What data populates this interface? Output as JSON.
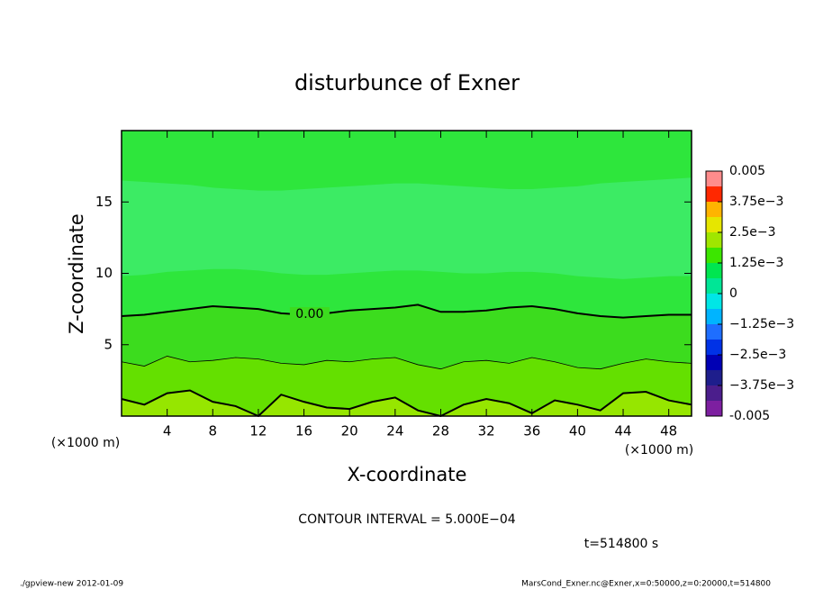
{
  "chart_data": {
    "type": "contour",
    "title": "disturbunce of Exner",
    "x_label": "X-coordinate",
    "y_label": "Z-coordinate",
    "x_unit": "(×1000 m)",
    "y_unit": "(×1000 m)",
    "xlim": [
      0,
      50
    ],
    "ylim": [
      0,
      20
    ],
    "xticks": [
      4,
      8,
      12,
      16,
      20,
      24,
      28,
      32,
      36,
      40,
      44,
      48
    ],
    "yticks": [
      5,
      10,
      15
    ],
    "x": [
      0,
      2,
      4,
      6,
      8,
      10,
      12,
      14,
      16,
      18,
      20,
      22,
      24,
      26,
      28,
      30,
      32,
      34,
      36,
      38,
      40,
      42,
      44,
      46,
      48,
      50
    ],
    "background": "#2ee63c",
    "layers": [
      {
        "color": "#3ceb64",
        "z": [
          16.5,
          16.4,
          16.3,
          16.2,
          16.0,
          15.9,
          15.8,
          15.8,
          15.9,
          16.0,
          16.1,
          16.2,
          16.3,
          16.3,
          16.2,
          16.1,
          16.0,
          15.9,
          15.9,
          16.0,
          16.1,
          16.3,
          16.4,
          16.5,
          16.6,
          16.7
        ]
      },
      {
        "color": "#2ee63c",
        "z": [
          9.8,
          9.9,
          10.1,
          10.2,
          10.3,
          10.3,
          10.2,
          10.0,
          9.9,
          9.9,
          10.0,
          10.1,
          10.2,
          10.2,
          10.1,
          10.0,
          10.0,
          10.1,
          10.1,
          10.0,
          9.8,
          9.7,
          9.6,
          9.7,
          9.8,
          9.8
        ]
      },
      {
        "color": "#3cdc1e",
        "line_width": 2,
        "z": [
          7.0,
          7.1,
          7.3,
          7.5,
          7.7,
          7.6,
          7.5,
          7.2,
          7.1,
          7.2,
          7.4,
          7.5,
          7.6,
          7.8,
          7.3,
          7.3,
          7.4,
          7.6,
          7.7,
          7.5,
          7.2,
          7.0,
          6.9,
          7.0,
          7.1,
          7.1
        ]
      },
      {
        "color": "#64e000",
        "line_width": 0.8,
        "z": [
          3.8,
          3.5,
          4.2,
          3.8,
          3.9,
          4.1,
          4.0,
          3.7,
          3.6,
          3.9,
          3.8,
          4.0,
          4.1,
          3.6,
          3.3,
          3.8,
          3.9,
          3.7,
          4.1,
          3.8,
          3.4,
          3.3,
          3.7,
          4.0,
          3.8,
          3.7
        ]
      },
      {
        "color": "#96e600",
        "line_width": 2,
        "z": [
          1.2,
          0.8,
          1.6,
          1.8,
          1.0,
          0.7,
          0.0,
          1.5,
          1.0,
          0.6,
          0.5,
          1.0,
          1.3,
          0.4,
          0.0,
          0.8,
          1.2,
          0.9,
          0.2,
          1.1,
          0.8,
          0.4,
          1.6,
          1.7,
          1.1,
          0.8
        ]
      }
    ],
    "contour_label": "0.00",
    "contour_label_x": 16.5,
    "colorbar": {
      "lim": [
        -0.005,
        0.005
      ],
      "levels": [
        -0.005,
        -0.004375,
        -0.00375,
        -0.003125,
        -0.0025,
        -0.001875,
        -0.00125,
        -0.000625,
        0,
        0.000625,
        0.00125,
        0.001875,
        0.0025,
        0.003125,
        0.00375,
        0.004375,
        0.005
      ],
      "colors": [
        "#7d1fa0",
        "#4b1e8c",
        "#1e1e8c",
        "#0000b4",
        "#0032e6",
        "#1e6eff",
        "#00b4ff",
        "#00e6e6",
        "#00e696",
        "#00e650",
        "#3ce600",
        "#a0e600",
        "#e6e600",
        "#ffb400",
        "#ff2800",
        "#ff8c8c"
      ],
      "ticks": [
        -0.005,
        {
          "value": -0.00375,
          "label": "−3.75e−3"
        },
        {
          "value": -0.0025,
          "label": "−2.5e−3"
        },
        {
          "value": -0.00125,
          "label": "−1.25e−3"
        },
        0,
        {
          "value": 0.00125,
          "label": "1.25e−3"
        },
        {
          "value": 0.0025,
          "label": "2.5e−3"
        },
        {
          "value": 0.00375,
          "label": "3.75e−3"
        },
        0.005
      ]
    },
    "footer_interval": "CONTOUR INTERVAL = 5.000E−04",
    "footer_time": "t=514800 s",
    "footer_left": "./gpview-new  2012-01-09",
    "footer_right": "MarsCond_Exner.nc@Exner,x=0:50000,z=0:20000,t=514800"
  }
}
